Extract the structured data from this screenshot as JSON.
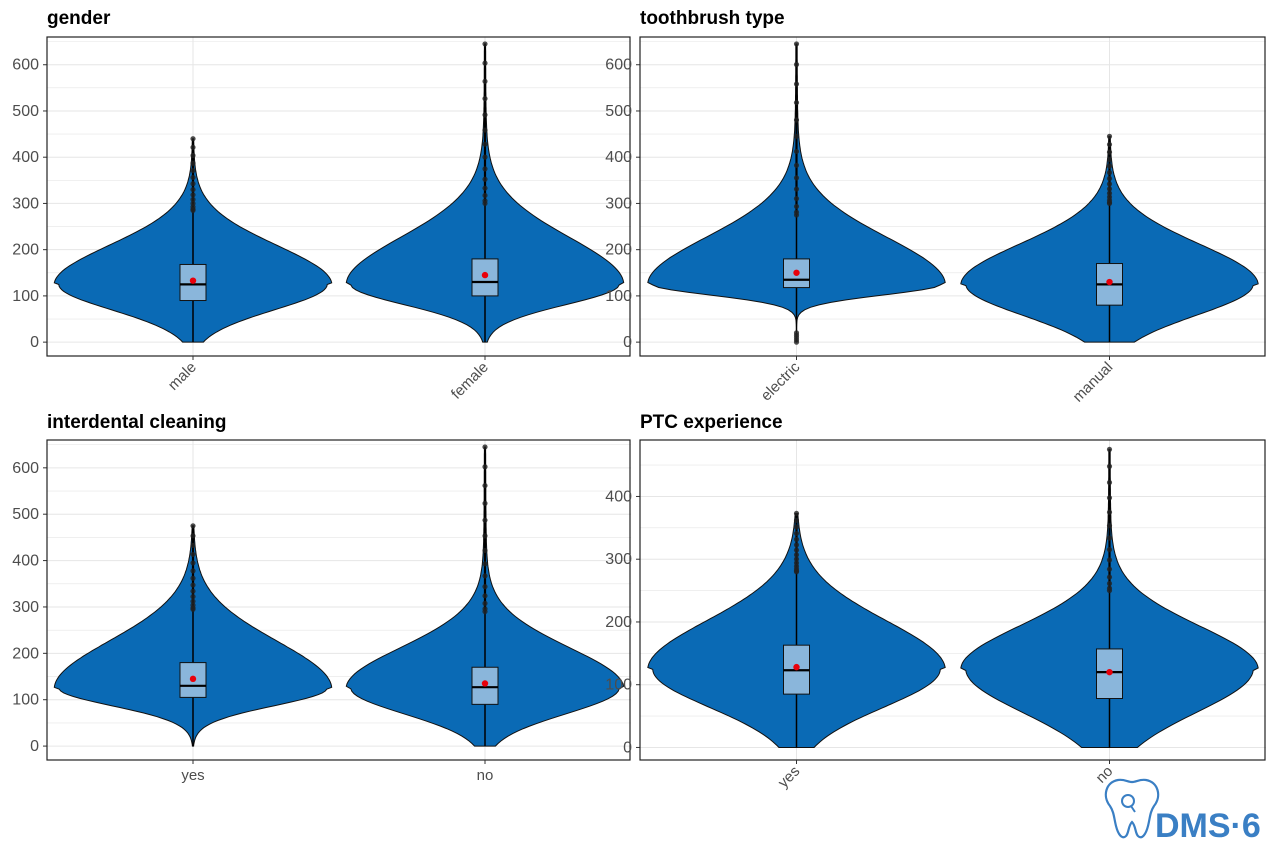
{
  "colors": {
    "violin_fill": "#0a6ab5",
    "box_fill": "#8ab6db",
    "mean_point": "#e8000b",
    "outlier": "#222222",
    "grid": "#e6e6e6",
    "logo": "#3a7fc4"
  },
  "logo": {
    "text": "DMS·6",
    "icon": "tooth-icon"
  },
  "chart_data": [
    {
      "type": "violin",
      "title": "gender",
      "xlabel": "",
      "ylabel": "",
      "ylim": [
        -30,
        660
      ],
      "y_ticks": [
        "0",
        "100",
        "200",
        "300",
        "400",
        "500",
        "600"
      ],
      "x_tick_rotation": "45",
      "categories": [
        "male",
        "female"
      ],
      "series": [
        {
          "category": "male",
          "min": 0,
          "q1": 90,
          "median": 125,
          "q3": 168,
          "whisker_low": 0,
          "whisker_high": 285,
          "mean": 133,
          "max": 440,
          "mode": 125
        },
        {
          "category": "female",
          "min": 0,
          "q1": 100,
          "median": 130,
          "q3": 180,
          "whisker_low": 0,
          "whisker_high": 300,
          "mean": 145,
          "max": 645,
          "mode": 125
        }
      ]
    },
    {
      "type": "violin",
      "title": "toothbrush type",
      "xlabel": "",
      "ylabel": "",
      "ylim": [
        -30,
        660
      ],
      "y_ticks": [
        "0",
        "100",
        "200",
        "300",
        "400",
        "500",
        "600"
      ],
      "x_tick_rotation": "45",
      "categories": [
        "electric",
        "manual"
      ],
      "series": [
        {
          "category": "electric",
          "min": 0,
          "q1": 118,
          "median": 135,
          "q3": 180,
          "whisker_low": 20,
          "whisker_high": 275,
          "mean": 150,
          "max": 645,
          "mode": 125
        },
        {
          "category": "manual",
          "min": 0,
          "q1": 80,
          "median": 125,
          "q3": 170,
          "whisker_low": 0,
          "whisker_high": 300,
          "mean": 130,
          "max": 445,
          "mode": 125
        }
      ]
    },
    {
      "type": "violin",
      "title": "interdental cleaning",
      "xlabel": "",
      "ylabel": "",
      "ylim": [
        -30,
        660
      ],
      "y_ticks": [
        "0",
        "100",
        "200",
        "300",
        "400",
        "500",
        "600"
      ],
      "x_tick_rotation": "0",
      "categories": [
        "yes",
        "no"
      ],
      "series": [
        {
          "category": "yes",
          "min": 0,
          "q1": 105,
          "median": 130,
          "q3": 180,
          "whisker_low": 0,
          "whisker_high": 295,
          "mean": 145,
          "max": 475,
          "mode": 125
        },
        {
          "category": "no",
          "min": 0,
          "q1": 90,
          "median": 127,
          "q3": 170,
          "whisker_low": 0,
          "whisker_high": 290,
          "mean": 135,
          "max": 645,
          "mode": 125
        }
      ]
    },
    {
      "type": "violin",
      "title": "PTC experience",
      "xlabel": "",
      "ylabel": "",
      "ylim": [
        -20,
        490
      ],
      "y_ticks": [
        "0",
        "100",
        "200",
        "300",
        "400"
      ],
      "x_tick_rotation": "45",
      "categories": [
        "yes",
        "no"
      ],
      "series": [
        {
          "category": "yes",
          "min": 0,
          "q1": 85,
          "median": 123,
          "q3": 163,
          "whisker_low": 0,
          "whisker_high": 280,
          "mean": 128,
          "max": 373,
          "mode": 125
        },
        {
          "category": "no",
          "min": 0,
          "q1": 78,
          "median": 120,
          "q3": 157,
          "whisker_low": 0,
          "whisker_high": 250,
          "mean": 120,
          "max": 475,
          "mode": 125
        }
      ]
    }
  ]
}
